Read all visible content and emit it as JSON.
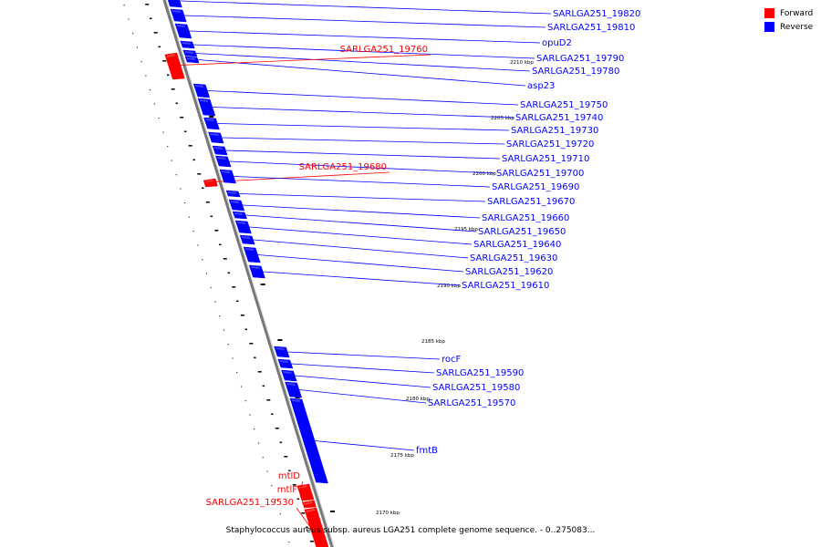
{
  "caption": "Staphylococcus aureus subsp. aureus LGA251 complete genome sequence. - 0..275083...",
  "legend": [
    {
      "label": "Forward",
      "color": "#ff0000"
    },
    {
      "label": "Reverse",
      "color": "#0000ff"
    }
  ],
  "colors": {
    "forward": "#ff0000",
    "reverse": "#0000ff",
    "backbone": "#777777"
  },
  "scale_labels": [
    "2210 kbp",
    "2205 kbp",
    "2200 kbp",
    "2195 kbp",
    "2190 kbp",
    "2185 kbp",
    "2180 kbp",
    "2175 kbp",
    "2170 kbp"
  ],
  "genes": [
    {
      "name": "SARLGA251_19820",
      "strand": "reverse"
    },
    {
      "name": "SARLGA251_19810",
      "strand": "reverse"
    },
    {
      "name": "opuD2",
      "strand": "reverse"
    },
    {
      "name": "SARLGA251_19790",
      "strand": "reverse"
    },
    {
      "name": "SARLGA251_19780",
      "strand": "reverse"
    },
    {
      "name": "asp23",
      "strand": "reverse"
    },
    {
      "name": "SARLGA251_19760",
      "strand": "forward"
    },
    {
      "name": "SARLGA251_19750",
      "strand": "reverse"
    },
    {
      "name": "SARLGA251_19740",
      "strand": "reverse"
    },
    {
      "name": "SARLGA251_19730",
      "strand": "reverse"
    },
    {
      "name": "SARLGA251_19720",
      "strand": "reverse"
    },
    {
      "name": "SARLGA251_19710",
      "strand": "reverse"
    },
    {
      "name": "SARLGA251_19700",
      "strand": "reverse"
    },
    {
      "name": "SARLGA251_19680",
      "strand": "forward"
    },
    {
      "name": "SARLGA251_19690",
      "strand": "reverse"
    },
    {
      "name": "SARLGA251_19670",
      "strand": "reverse"
    },
    {
      "name": "SARLGA251_19660",
      "strand": "reverse"
    },
    {
      "name": "SARLGA251_19650",
      "strand": "reverse"
    },
    {
      "name": "SARLGA251_19640",
      "strand": "reverse"
    },
    {
      "name": "SARLGA251_19630",
      "strand": "reverse"
    },
    {
      "name": "SARLGA251_19620",
      "strand": "reverse"
    },
    {
      "name": "SARLGA251_19610",
      "strand": "reverse"
    },
    {
      "name": "rocF",
      "strand": "reverse"
    },
    {
      "name": "SARLGA251_19590",
      "strand": "reverse"
    },
    {
      "name": "SARLGA251_19580",
      "strand": "reverse"
    },
    {
      "name": "SARLGA251_19570",
      "strand": "reverse"
    },
    {
      "name": "fmtB",
      "strand": "reverse"
    },
    {
      "name": "mtlD",
      "strand": "forward"
    },
    {
      "name": "mtlF",
      "strand": "forward"
    },
    {
      "name": "SARLGA251_19530",
      "strand": "forward"
    }
  ]
}
